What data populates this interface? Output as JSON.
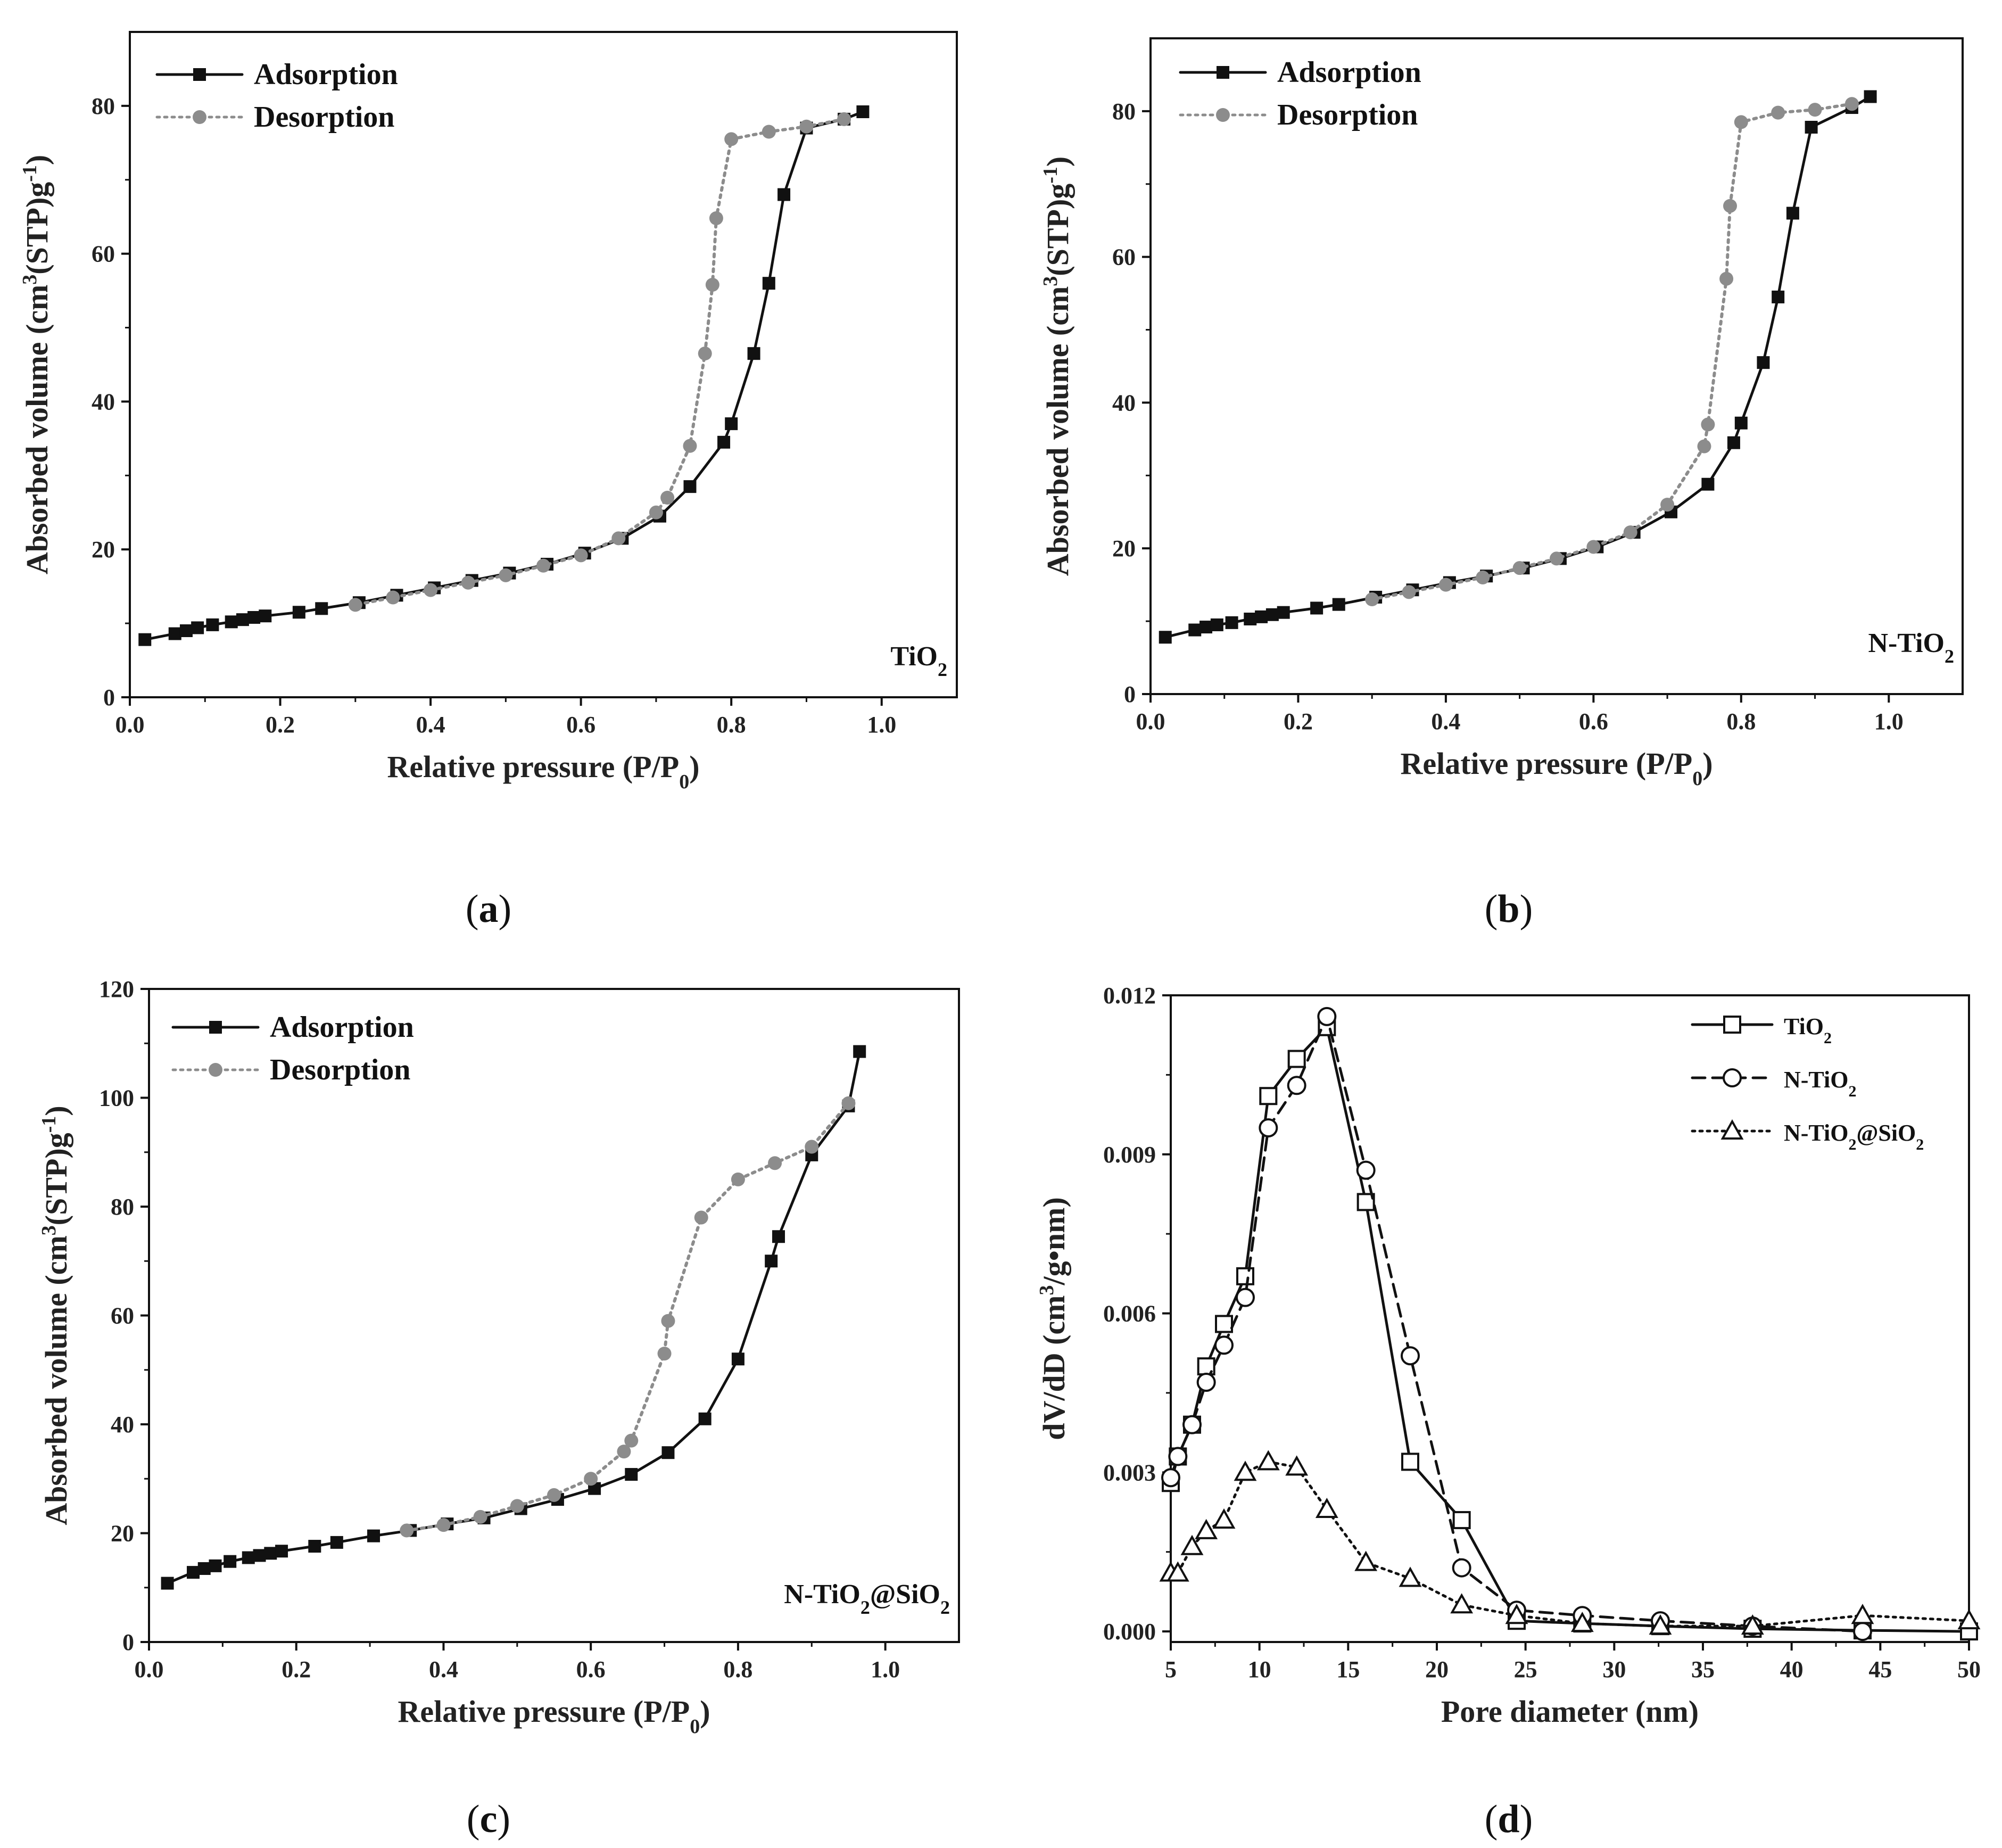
{
  "figure": {
    "panels": [
      {
        "caption_prefix": "(",
        "caption_letter": "a",
        "caption_suffix": ")"
      },
      {
        "caption_prefix": "(",
        "caption_letter": "b",
        "caption_suffix": ")"
      },
      {
        "caption_prefix": "(",
        "caption_letter": "c",
        "caption_suffix": ")"
      },
      {
        "caption_prefix": "(",
        "caption_letter": "d",
        "caption_suffix": ")"
      }
    ]
  },
  "colors": {
    "adsorption": "#111111",
    "desorption": "#8c8c8c",
    "axis": "#111111"
  },
  "chart_data": [
    {
      "type": "line",
      "panel": "a",
      "legend_position": "top-left",
      "sample_label": {
        "main": "TiO",
        "sub": "2",
        "rest": ""
      },
      "xlabel": {
        "main": "Relative pressure (P/P",
        "sub": "0",
        "rest": ")"
      },
      "ylabel": {
        "before": "Absorbed volume (cm",
        "sup1": "3",
        "middle": "(STP)g",
        "sup2": "-1",
        "after": ")"
      },
      "xlim": [
        0.0,
        1.1
      ],
      "ylim": [
        0,
        90
      ],
      "xticks": [
        0.0,
        0.2,
        0.4,
        0.6,
        0.8,
        1.0
      ],
      "xtick_labels": [
        "0.0",
        "0.2",
        "0.4",
        "0.6",
        "0.8",
        "1.0"
      ],
      "yticks": [
        0,
        20,
        40,
        60,
        80
      ],
      "ytick_labels": [
        "0",
        "20",
        "40",
        "60",
        "80"
      ],
      "series": [
        {
          "name": "Adsorption",
          "style": "solid",
          "marker": "square",
          "x": [
            0.02,
            0.06,
            0.075,
            0.09,
            0.11,
            0.135,
            0.15,
            0.165,
            0.18,
            0.225,
            0.255,
            0.305,
            0.355,
            0.405,
            0.455,
            0.505,
            0.555,
            0.605,
            0.655,
            0.705,
            0.745,
            0.79,
            0.8,
            0.83,
            0.85,
            0.87,
            0.9,
            0.95,
            0.975
          ],
          "y": [
            7.8,
            8.6,
            9.0,
            9.4,
            9.8,
            10.2,
            10.5,
            10.8,
            11.0,
            11.5,
            12.0,
            12.8,
            13.8,
            14.8,
            15.8,
            16.8,
            18.0,
            19.5,
            21.5,
            24.5,
            28.5,
            34.5,
            37.0,
            46.5,
            56.0,
            68.0,
            77.0,
            78.2,
            79.2
          ]
        },
        {
          "name": "Desorption",
          "style": "dotted",
          "marker": "circle",
          "x": [
            0.95,
            0.9,
            0.85,
            0.8,
            0.78,
            0.775,
            0.765,
            0.745,
            0.715,
            0.7,
            0.65,
            0.6,
            0.55,
            0.5,
            0.45,
            0.4,
            0.35,
            0.3
          ],
          "y": [
            78.2,
            77.2,
            76.5,
            75.5,
            64.8,
            55.8,
            46.5,
            34.0,
            27.0,
            25.0,
            21.5,
            19.2,
            17.8,
            16.5,
            15.5,
            14.5,
            13.5,
            12.5
          ]
        }
      ]
    },
    {
      "type": "line",
      "panel": "b",
      "legend_position": "top-left",
      "sample_label": {
        "main": "N-TiO",
        "sub": "2",
        "rest": ""
      },
      "xlabel": {
        "main": "Relative pressure (P/P",
        "sub": "0",
        "rest": ")"
      },
      "ylabel": {
        "before": "Absorbed volume (cm",
        "sup1": "3",
        "middle": "(STP)g",
        "sup2": "-1",
        "after": ")"
      },
      "xlim": [
        0.0,
        1.1
      ],
      "ylim": [
        0,
        90
      ],
      "xticks": [
        0.0,
        0.2,
        0.4,
        0.6,
        0.8,
        1.0
      ],
      "xtick_labels": [
        "0.0",
        "0.2",
        "0.4",
        "0.6",
        "0.8",
        "1.0"
      ],
      "yticks": [
        0,
        20,
        40,
        60,
        80
      ],
      "ytick_labels": [
        "0",
        "20",
        "40",
        "60",
        "80"
      ],
      "series": [
        {
          "name": "Adsorption",
          "style": "solid",
          "marker": "square",
          "x": [
            0.02,
            0.06,
            0.075,
            0.09,
            0.11,
            0.135,
            0.15,
            0.165,
            0.18,
            0.225,
            0.255,
            0.305,
            0.355,
            0.405,
            0.455,
            0.505,
            0.555,
            0.605,
            0.655,
            0.705,
            0.755,
            0.79,
            0.8,
            0.83,
            0.85,
            0.87,
            0.895,
            0.95,
            0.975
          ],
          "y": [
            7.8,
            8.8,
            9.2,
            9.5,
            9.8,
            10.3,
            10.6,
            10.9,
            11.2,
            11.8,
            12.3,
            13.3,
            14.3,
            15.3,
            16.2,
            17.3,
            18.6,
            20.2,
            22.2,
            25.0,
            28.8,
            34.5,
            37.2,
            45.5,
            54.5,
            66.0,
            77.8,
            80.5,
            82.0
          ]
        },
        {
          "name": "Desorption",
          "style": "dotted",
          "marker": "circle",
          "x": [
            0.95,
            0.9,
            0.85,
            0.8,
            0.785,
            0.78,
            0.755,
            0.75,
            0.7,
            0.65,
            0.6,
            0.55,
            0.5,
            0.45,
            0.4,
            0.35,
            0.3
          ],
          "y": [
            81.0,
            80.2,
            79.8,
            78.5,
            67.0,
            57.0,
            37.0,
            34.0,
            26.0,
            22.2,
            20.2,
            18.6,
            17.3,
            16.0,
            15.0,
            14.0,
            13.0
          ]
        }
      ]
    },
    {
      "type": "line",
      "panel": "c",
      "legend_position": "top-left",
      "sample_label": {
        "main": "N-TiO",
        "sub": "2",
        "rest": "@SiO",
        "sub2": "2"
      },
      "xlabel": {
        "main": "Relative pressure (P/P",
        "sub": "0",
        "rest": ")"
      },
      "ylabel": {
        "before": "Absorbed volume (cm",
        "sup1": "3",
        "middle": "(STP)g",
        "sup2": "-1",
        "after": ")"
      },
      "xlim": [
        0.0,
        1.1
      ],
      "ylim": [
        0,
        120
      ],
      "xticks": [
        0.0,
        0.2,
        0.4,
        0.6,
        0.8,
        1.0
      ],
      "xtick_labels": [
        "0.0",
        "0.2",
        "0.4",
        "0.6",
        "0.8",
        "1.0"
      ],
      "yticks": [
        0,
        20,
        40,
        60,
        80,
        100,
        120
      ],
      "ytick_labels": [
        "0",
        "20",
        "40",
        "60",
        "80",
        "100",
        "120"
      ],
      "series": [
        {
          "name": "Adsorption",
          "style": "solid",
          "marker": "square",
          "x": [
            0.025,
            0.06,
            0.075,
            0.09,
            0.11,
            0.135,
            0.15,
            0.165,
            0.18,
            0.225,
            0.255,
            0.305,
            0.355,
            0.405,
            0.455,
            0.505,
            0.555,
            0.605,
            0.655,
            0.705,
            0.755,
            0.8,
            0.845,
            0.855,
            0.9,
            0.95,
            0.965
          ],
          "y": [
            10.8,
            12.8,
            13.5,
            14.0,
            14.8,
            15.5,
            15.9,
            16.3,
            16.7,
            17.6,
            18.3,
            19.5,
            20.5,
            21.7,
            22.8,
            24.5,
            26.2,
            28.2,
            30.8,
            34.8,
            41.0,
            52.0,
            70.0,
            74.5,
            89.5,
            98.5,
            108.5
          ]
        },
        {
          "name": "Desorption",
          "style": "dotted",
          "marker": "circle",
          "x": [
            0.95,
            0.9,
            0.85,
            0.8,
            0.75,
            0.705,
            0.7,
            0.655,
            0.645,
            0.6,
            0.55,
            0.5,
            0.45,
            0.4,
            0.35
          ],
          "y": [
            99.0,
            91.0,
            88.0,
            85.0,
            78.0,
            59.0,
            53.0,
            37.0,
            35.0,
            30.0,
            27.0,
            25.0,
            23.0,
            21.5,
            20.5
          ]
        }
      ]
    },
    {
      "type": "line",
      "panel": "d",
      "legend_position": "top-right",
      "xlabel": {
        "main": "Pore diameter (nm)",
        "sub": "",
        "rest": ""
      },
      "ylabel": {
        "before": "dV/dD (cm",
        "sup1": "3",
        "middle": "/g•nm)",
        "sup2": "",
        "after": ""
      },
      "xlim": [
        5,
        50
      ],
      "ylim": [
        -0.0002,
        0.012
      ],
      "xticks": [
        5,
        10,
        15,
        20,
        25,
        30,
        35,
        40,
        45,
        50
      ],
      "xtick_labels": [
        "5",
        "10",
        "15",
        "20",
        "25",
        "30",
        "35",
        "40",
        "45",
        "50"
      ],
      "yticks": [
        0.0,
        0.003,
        0.006,
        0.009,
        0.012
      ],
      "ytick_labels": [
        "0.000",
        "0.003",
        "0.006",
        "0.009",
        "0.012"
      ],
      "series": [
        {
          "name": "TiO",
          "name_sub": "2",
          "name_rest": "",
          "name_sub2": "",
          "style": "solid",
          "marker": "square-open",
          "x": [
            5.0,
            5.4,
            6.2,
            7.0,
            8.0,
            9.2,
            10.5,
            12.1,
            13.8,
            16.0,
            18.5,
            21.4,
            24.5,
            28.2,
            32.6,
            37.8,
            44.0,
            50.0
          ],
          "y": [
            0.0028,
            0.0033,
            0.0039,
            0.005,
            0.0058,
            0.0067,
            0.0101,
            0.0108,
            0.0114,
            0.0081,
            0.0032,
            0.0021,
            0.0002,
            0.00015,
            0.0001,
            5e-05,
            2e-05,
            0.0
          ]
        },
        {
          "name": "N-TiO",
          "name_sub": "2",
          "name_rest": "",
          "name_sub2": "",
          "style": "dashed",
          "marker": "circle-open",
          "x": [
            5.0,
            5.4,
            6.2,
            7.0,
            8.0,
            9.2,
            10.5,
            12.1,
            13.8,
            16.0,
            18.5,
            21.4,
            24.5,
            28.2,
            32.6,
            37.8,
            44.0
          ],
          "y": [
            0.0029,
            0.0033,
            0.0039,
            0.0047,
            0.0054,
            0.0063,
            0.0095,
            0.0103,
            0.0116,
            0.0087,
            0.0052,
            0.0012,
            0.0004,
            0.0003,
            0.0002,
            0.0001,
            0.0
          ]
        },
        {
          "name": "N-TiO",
          "name_sub": "2",
          "name_rest": "@SiO",
          "name_sub2": "2",
          "style": "dotted",
          "marker": "triangle-open",
          "x": [
            5.0,
            5.4,
            6.2,
            7.0,
            8.0,
            9.2,
            10.5,
            12.1,
            13.8,
            16.0,
            18.5,
            21.4,
            24.5,
            28.2,
            32.6,
            37.8,
            44.0,
            50.0
          ],
          "y": [
            0.0011,
            0.0011,
            0.0016,
            0.0019,
            0.0021,
            0.003,
            0.0032,
            0.0031,
            0.0023,
            0.0013,
            0.001,
            0.0005,
            0.0003,
            0.00015,
            0.0001,
            0.0001,
            0.0003,
            0.0002
          ]
        }
      ]
    }
  ]
}
